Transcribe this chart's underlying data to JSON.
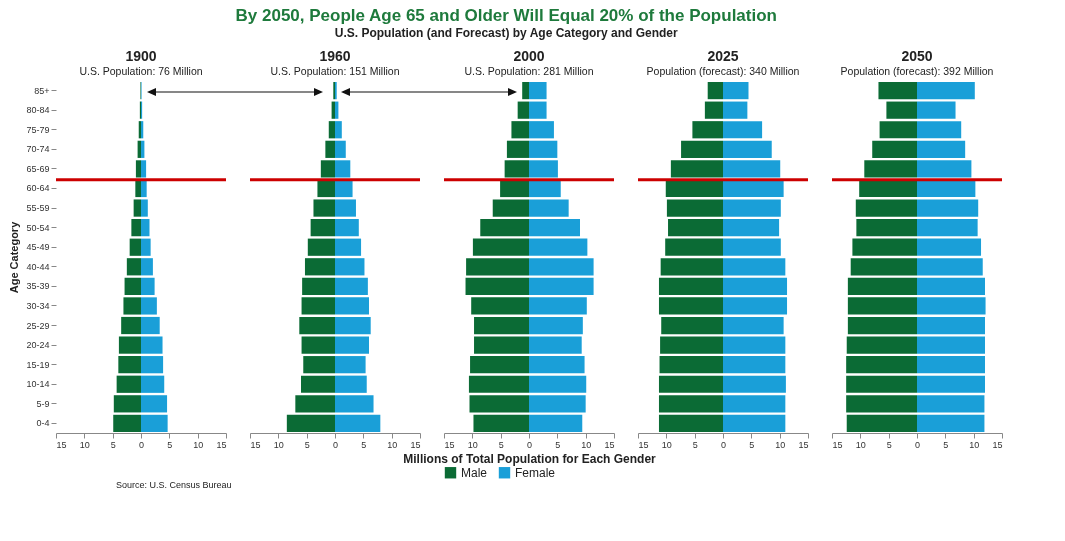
{
  "chart_data": [
    {
      "type": "bar",
      "orientation": "horizontal",
      "stacked": true,
      "title": "1900",
      "subtitle": "U.S. Population:  76 Million",
      "ylabel": "Age Category",
      "annotations": [
        "By 2050, People Age 65 and Older Will Equal 20% of the Population",
        "U.S. Population (and Forecast) by Age Category and Gender",
        "Source: U.S. Census Bureau"
      ],
      "categories": [
        "85+",
        "80-84",
        "75-79",
        "70-74",
        "65-69",
        "60-64",
        "55-59",
        "50-54",
        "45-49",
        "40-44",
        "35-39",
        "30-34",
        "25-29",
        "20-24",
        "15-19",
        "10-14",
        "5-9",
        "0-4"
      ],
      "series": [
        {
          "color": "#0b6b35",
          "values": [
            -0.1,
            -0.2,
            -0.4,
            -0.6,
            -0.9,
            -1.0,
            -1.3,
            -1.7,
            -2.0,
            -2.5,
            -2.9,
            -3.1,
            -3.5,
            -3.9,
            -4.0,
            -4.3,
            -4.8,
            -4.9
          ]
        },
        {
          "color": "#1a9fd8",
          "values": [
            0.1,
            0.2,
            0.4,
            0.6,
            0.9,
            1.0,
            1.2,
            1.5,
            1.7,
            2.1,
            2.4,
            2.8,
            3.3,
            3.8,
            3.9,
            4.1,
            4.6,
            4.7
          ]
        }
      ],
      "xlim": [
        -15,
        15
      ],
      "xticks": [
        {
          "value": -15,
          "label": "15"
        },
        {
          "value": -10,
          "label": "10"
        },
        {
          "value": -5,
          "label": "5"
        },
        0,
        5,
        10,
        15
      ],
      "ref_lines": [
        {
          "axis": "y",
          "value": "60-64",
          "color": "#cc0000"
        }
      ],
      "grid": false,
      "legend": false
    },
    {
      "type": "bar",
      "orientation": "horizontal",
      "stacked": true,
      "title": "1960",
      "subtitle": "U.S. Population:  151 Million",
      "categories": [
        "85+",
        "80-84",
        "75-79",
        "70-74",
        "65-69",
        "60-64",
        "55-59",
        "50-54",
        "45-49",
        "40-44",
        "35-39",
        "30-34",
        "25-29",
        "20-24",
        "15-19",
        "10-14",
        "5-9",
        "0-4"
      ],
      "series": [
        {
          "color": "#0b6b35",
          "values": [
            -0.3,
            -0.6,
            -1.1,
            -1.7,
            -2.5,
            -3.1,
            -3.8,
            -4.3,
            -4.8,
            -5.3,
            -5.8,
            -5.9,
            -6.3,
            -5.9,
            -5.6,
            -6.0,
            -7.0,
            -8.5
          ]
        },
        {
          "color": "#1a9fd8",
          "values": [
            0.3,
            0.6,
            1.2,
            1.9,
            2.7,
            3.1,
            3.7,
            4.2,
            4.6,
            5.2,
            5.8,
            6.0,
            6.3,
            6.0,
            5.4,
            5.6,
            6.8,
            8.0
          ]
        }
      ],
      "xlim": [
        -15,
        15
      ],
      "xticks": [
        {
          "value": -15,
          "label": "15"
        },
        {
          "value": -10,
          "label": "10"
        },
        {
          "value": -5,
          "label": "5"
        },
        0,
        5,
        10,
        15
      ],
      "ref_lines": [
        {
          "axis": "y",
          "value": "60-64",
          "color": "#cc0000"
        }
      ],
      "grid": false,
      "legend": false,
      "tick_labels": "x"
    },
    {
      "type": "bar",
      "orientation": "horizontal",
      "stacked": true,
      "title": "2000",
      "subtitle": "U.S. Population:  281 Million",
      "xlabel": "Millions of Total Population for Each Gender",
      "categories": [
        "85+",
        "80-84",
        "75-79",
        "70-74",
        "65-69",
        "60-64",
        "55-59",
        "50-54",
        "45-49",
        "40-44",
        "35-39",
        "30-34",
        "25-29",
        "20-24",
        "15-19",
        "10-14",
        "5-9",
        "0-4"
      ],
      "series": [
        {
          "name": "Male",
          "color": "#0b6b35",
          "values": [
            -1.2,
            -2.0,
            -3.1,
            -3.9,
            -4.3,
            -5.1,
            -6.4,
            -8.6,
            -9.9,
            -11.1,
            -11.2,
            -10.2,
            -9.7,
            -9.7,
            -10.4,
            -10.6,
            -10.5,
            -9.8
          ]
        },
        {
          "name": "Female",
          "color": "#1a9fd8",
          "values": [
            3.1,
            3.1,
            4.4,
            5.0,
            5.1,
            5.6,
            7.0,
            9.0,
            10.3,
            11.4,
            11.4,
            10.2,
            9.5,
            9.3,
            9.8,
            10.1,
            10.0,
            9.4
          ]
        }
      ],
      "xlim": [
        -15,
        15
      ],
      "xticks": [
        {
          "value": -15,
          "label": "15"
        },
        {
          "value": -10,
          "label": "10"
        },
        {
          "value": -5,
          "label": "5"
        },
        0,
        5,
        10,
        15
      ],
      "ref_lines": [
        {
          "axis": "y",
          "value": "60-64",
          "color": "#cc0000"
        }
      ],
      "grid": false,
      "legend": "bottom",
      "tick_labels": "x"
    },
    {
      "type": "bar",
      "orientation": "horizontal",
      "stacked": true,
      "title": "2025",
      "subtitle": "Population (forecast): 340 Million",
      "categories": [
        "85+",
        "80-84",
        "75-79",
        "70-74",
        "65-69",
        "60-64",
        "55-59",
        "50-54",
        "45-49",
        "40-44",
        "35-39",
        "30-34",
        "25-29",
        "20-24",
        "15-19",
        "10-14",
        "5-9",
        "0-4"
      ],
      "series": [
        {
          "color": "#0b6b35",
          "values": [
            -2.7,
            -3.2,
            -5.4,
            -7.4,
            -9.2,
            -10.1,
            -9.9,
            -9.7,
            -10.2,
            -11.0,
            -11.3,
            -11.3,
            -10.9,
            -11.1,
            -11.2,
            -11.3,
            -11.3,
            -11.3
          ]
        },
        {
          "color": "#1a9fd8",
          "values": [
            4.5,
            4.3,
            6.9,
            8.6,
            10.1,
            10.7,
            10.2,
            9.9,
            10.2,
            11.0,
            11.3,
            11.3,
            10.7,
            11.0,
            11.0,
            11.1,
            11.0,
            11.0
          ]
        }
      ],
      "xlim": [
        -15,
        15
      ],
      "xticks": [
        {
          "value": -15,
          "label": "15"
        },
        {
          "value": -10,
          "label": "10"
        },
        {
          "value": -5,
          "label": "5"
        },
        0,
        5,
        10,
        15
      ],
      "ref_lines": [
        {
          "axis": "y",
          "value": "60-64",
          "color": "#cc0000"
        }
      ],
      "grid": false,
      "legend": false,
      "tick_labels": "x"
    },
    {
      "type": "bar",
      "orientation": "horizontal",
      "stacked": true,
      "title": "2050",
      "subtitle": "Population (forecast): 392 Million",
      "categories": [
        "85+",
        "80-84",
        "75-79",
        "70-74",
        "65-69",
        "60-64",
        "55-59",
        "50-54",
        "45-49",
        "40-44",
        "35-39",
        "30-34",
        "25-29",
        "20-24",
        "15-19",
        "10-14",
        "5-9",
        "0-4"
      ],
      "series": [
        {
          "color": "#0b6b35",
          "values": [
            -6.8,
            -5.4,
            -6.6,
            -7.9,
            -9.3,
            -10.2,
            -10.8,
            -10.7,
            -11.4,
            -11.7,
            -12.2,
            -12.2,
            -12.2,
            -12.4,
            -12.5,
            -12.5,
            -12.5,
            -12.4
          ]
        },
        {
          "color": "#1a9fd8",
          "values": [
            10.2,
            6.8,
            7.8,
            8.5,
            9.6,
            10.3,
            10.8,
            10.7,
            11.3,
            11.6,
            12.0,
            12.1,
            12.0,
            12.0,
            12.0,
            12.0,
            11.9,
            11.9
          ]
        }
      ],
      "xlim": [
        -15,
        15
      ],
      "xticks": [
        {
          "value": -15,
          "label": "15"
        },
        {
          "value": -10,
          "label": "10"
        },
        {
          "value": -5,
          "label": "5"
        },
        0,
        5,
        10,
        15
      ],
      "ref_lines": [
        {
          "axis": "y",
          "value": "60-64",
          "color": "#cc0000"
        }
      ],
      "grid": false,
      "legend": false,
      "tick_labels": "x"
    }
  ]
}
